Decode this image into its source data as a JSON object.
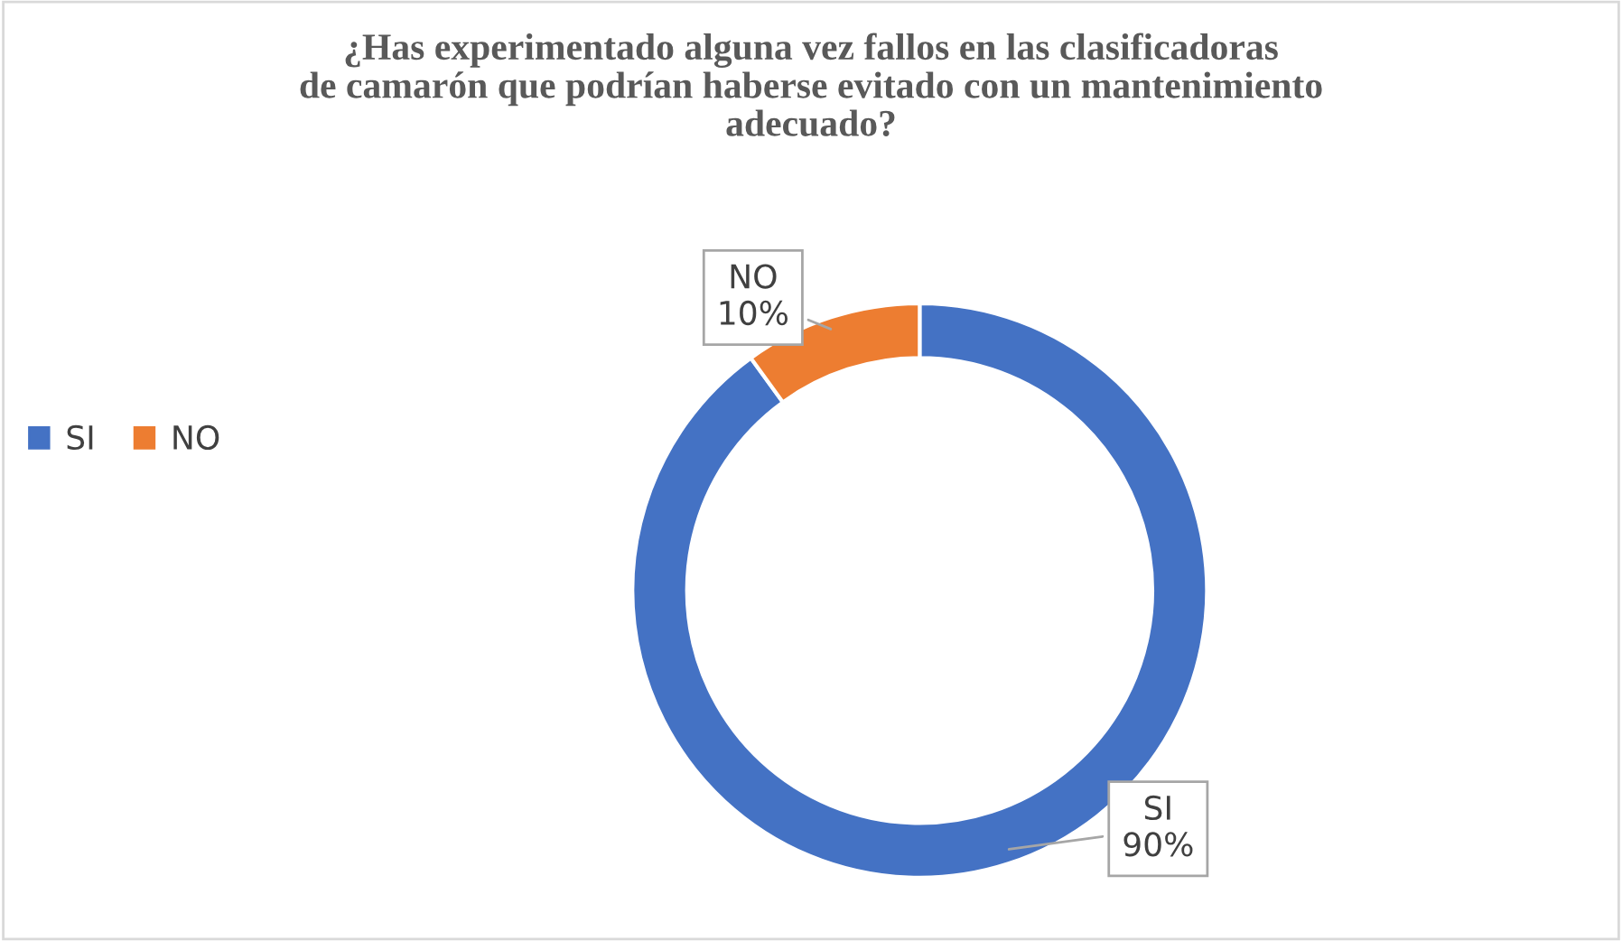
{
  "chart_data": {
    "type": "donut",
    "title": "¿Has experimentado alguna vez fallos en las clasificadoras\nde camarón que podrían haberse evitado con un mantenimiento\nadecuado?",
    "categories": [
      "SI",
      "NO"
    ],
    "values": [
      90,
      10
    ],
    "colors": [
      "#4472c4",
      "#ed7d31"
    ],
    "value_labels": [
      "90%",
      "10%"
    ],
    "legend": "left"
  }
}
